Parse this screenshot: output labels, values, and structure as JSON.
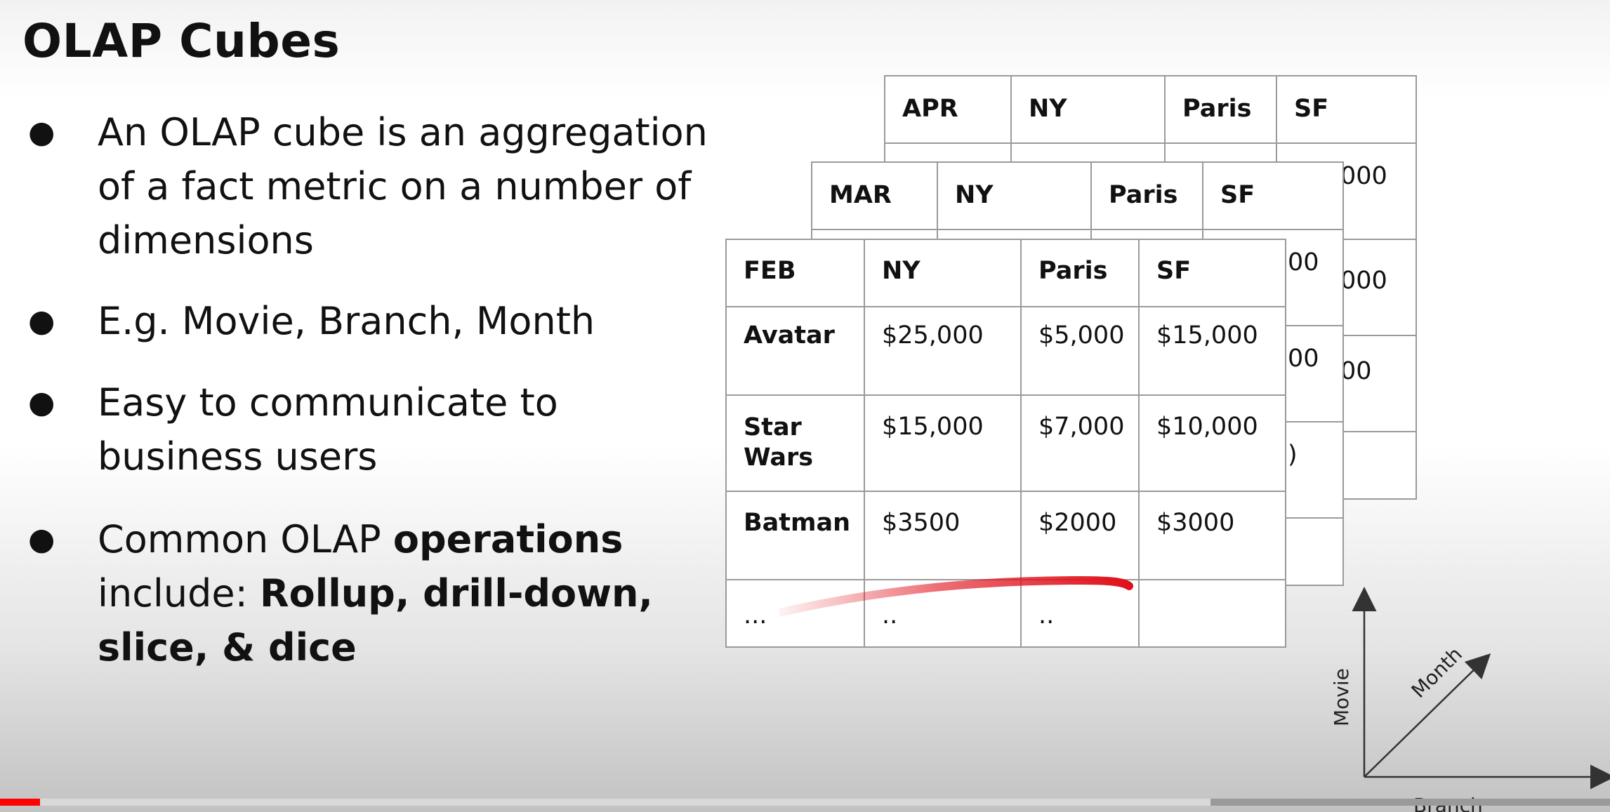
{
  "slide": {
    "title": "OLAP Cubes",
    "bullet_symbol": "●",
    "bullets": [
      "An OLAP cube is an aggregation of a fact metric on a number of dimensions",
      "E.g. Movie, Branch, Month",
      "Easy to communicate to business users"
    ],
    "bullet4": {
      "part1": "Common OLAP ",
      "bold1": "operations",
      "part2": " include: ",
      "bold2": "Rollup, drill-down, slice, & dice"
    }
  },
  "tables": {
    "apr": {
      "header": [
        "APR",
        "NY",
        "Paris",
        "SF"
      ],
      "visible_fragments": [
        "000",
        "000",
        "00"
      ]
    },
    "mar": {
      "header": [
        "MAR",
        "NY",
        "Paris",
        "SF"
      ],
      "visible_fragments": [
        "00",
        "00",
        ")"
      ]
    },
    "feb": {
      "header": [
        "FEB",
        "NY",
        "Paris",
        "SF"
      ],
      "rows": [
        [
          "Avatar",
          "$25,000",
          "$5,000",
          "$15,000"
        ],
        [
          "Star Wars",
          "$15,000",
          "$7,000",
          "$10,000"
        ],
        [
          "Batman",
          "$3500",
          "$2000",
          "$3000"
        ],
        [
          "...",
          "..",
          "..",
          ""
        ]
      ]
    }
  },
  "axes": {
    "y_label": "Movie",
    "diag_label": "Month",
    "x_label": "Branch"
  },
  "annotation_color": "#e0101a",
  "video_progress": {
    "played_fraction": 0.025,
    "buffered_fraction": 0.752
  }
}
